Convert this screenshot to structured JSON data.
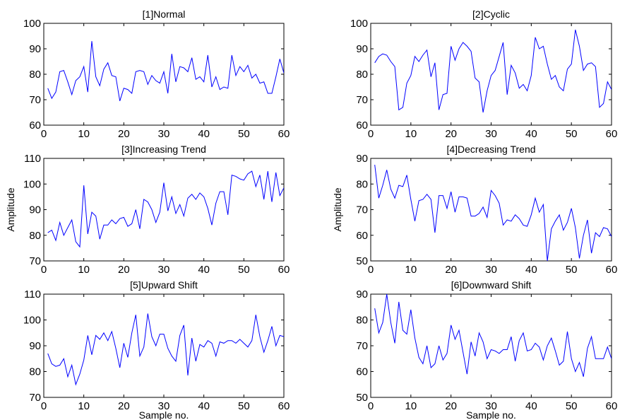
{
  "chart_data": [
    {
      "type": "line",
      "title": "[1]Normal",
      "xlabel": "",
      "ylabel": "",
      "xlim": [
        0,
        60
      ],
      "ylim": [
        60,
        100
      ],
      "xticks": [
        "0",
        "10",
        "20",
        "30",
        "40",
        "50",
        "60"
      ],
      "yticks": [
        "60",
        "70",
        "80",
        "90",
        "100"
      ],
      "color": "#0000ff",
      "x": [
        1,
        2,
        3,
        4,
        5,
        6,
        7,
        8,
        9,
        10,
        11,
        12,
        13,
        14,
        15,
        16,
        17,
        18,
        19,
        20,
        21,
        22,
        23,
        24,
        25,
        26,
        27,
        28,
        29,
        30,
        31,
        32,
        33,
        34,
        35,
        36,
        37,
        38,
        39,
        40,
        41,
        42,
        43,
        44,
        45,
        46,
        47,
        48,
        49,
        50,
        51,
        52,
        53,
        54,
        55,
        56,
        57,
        58,
        59,
        60
      ],
      "y": [
        74.5,
        70.5,
        73,
        81,
        81.5,
        77,
        72,
        77.5,
        79,
        83,
        73,
        93,
        79,
        75.5,
        82,
        84.5,
        79.5,
        79,
        69.5,
        74.5,
        74,
        72.5,
        81,
        81.5,
        81,
        76,
        79.5,
        77.5,
        76.5,
        81,
        72.5,
        88,
        77,
        83,
        82.5,
        81,
        86.5,
        78,
        79,
        77,
        87.5,
        75,
        79,
        74,
        75,
        74.5,
        87.5,
        79.5,
        83,
        81,
        83.5,
        78.5,
        80,
        76.5,
        77,
        72.5,
        72.5,
        79,
        86,
        80.5
      ]
    },
    {
      "type": "line",
      "title": "[2]Cyclic",
      "xlabel": "",
      "ylabel": "",
      "xlim": [
        0,
        60
      ],
      "ylim": [
        60,
        100
      ],
      "xticks": [
        "0",
        "10",
        "20",
        "30",
        "40",
        "50",
        "60"
      ],
      "yticks": [
        "60",
        "70",
        "80",
        "90",
        "100"
      ],
      "color": "#0000ff",
      "x": [
        1,
        2,
        3,
        4,
        5,
        6,
        7,
        8,
        9,
        10,
        11,
        12,
        13,
        14,
        15,
        16,
        17,
        18,
        19,
        20,
        21,
        22,
        23,
        24,
        25,
        26,
        27,
        28,
        29,
        30,
        31,
        32,
        33,
        34,
        35,
        36,
        37,
        38,
        39,
        40,
        41,
        42,
        43,
        44,
        45,
        46,
        47,
        48,
        49,
        50,
        51,
        52,
        53,
        54,
        55,
        56,
        57,
        58,
        59,
        60
      ],
      "y": [
        84.5,
        87,
        88,
        87.5,
        85,
        83,
        66,
        67,
        76.5,
        79.5,
        87,
        85,
        87.5,
        89.5,
        79,
        84.5,
        66,
        72,
        72.5,
        91,
        85.5,
        90,
        92.5,
        91,
        89,
        78.5,
        77,
        65,
        73.5,
        79.5,
        81.5,
        87,
        92.5,
        72,
        83.5,
        80.5,
        74.5,
        76,
        73.5,
        79.5,
        94.5,
        90,
        91,
        84,
        78,
        79.5,
        75,
        73.5,
        82,
        84,
        97.5,
        91,
        81.5,
        84,
        84.5,
        83,
        67,
        68.5,
        77,
        74
      ]
    },
    {
      "type": "line",
      "title": "[3]Increasing Trend",
      "xlabel": "",
      "ylabel": "Amplitude",
      "xlim": [
        0,
        60
      ],
      "ylim": [
        70,
        110
      ],
      "xticks": [
        "0",
        "10",
        "20",
        "30",
        "40",
        "50",
        "60"
      ],
      "yticks": [
        "70",
        "80",
        "90",
        "100",
        "110"
      ],
      "color": "#0000ff",
      "x": [
        1,
        2,
        3,
        4,
        5,
        6,
        7,
        8,
        9,
        10,
        11,
        12,
        13,
        14,
        15,
        16,
        17,
        18,
        19,
        20,
        21,
        22,
        23,
        24,
        25,
        26,
        27,
        28,
        29,
        30,
        31,
        32,
        33,
        34,
        35,
        36,
        37,
        38,
        39,
        40,
        41,
        42,
        43,
        44,
        45,
        46,
        47,
        48,
        49,
        50,
        51,
        52,
        53,
        54,
        55,
        56,
        57,
        58,
        59,
        60
      ],
      "y": [
        81,
        82,
        78,
        85,
        80,
        83,
        86,
        77.5,
        75.5,
        99.5,
        80.5,
        89,
        87.5,
        78.5,
        84,
        84,
        86,
        84.5,
        86.5,
        87,
        83.5,
        84.5,
        90,
        82.5,
        94,
        93,
        90,
        85,
        89,
        100.5,
        89.5,
        95,
        88.5,
        92,
        87.5,
        94.5,
        96,
        94,
        96.5,
        95,
        90.5,
        84,
        92.5,
        97,
        97,
        88,
        103.5,
        103,
        102,
        101.5,
        104,
        105,
        99,
        103.5,
        94,
        105,
        93,
        104.5,
        95.5,
        98.5
      ]
    },
    {
      "type": "line",
      "title": "[4]Decreasing Trend",
      "xlabel": "",
      "ylabel": "Amplitude",
      "xlim": [
        0,
        60
      ],
      "ylim": [
        50,
        90
      ],
      "xticks": [
        "0",
        "10",
        "20",
        "30",
        "40",
        "50",
        "60"
      ],
      "yticks": [
        "50",
        "60",
        "70",
        "80",
        "90"
      ],
      "color": "#0000ff",
      "x": [
        1,
        2,
        3,
        4,
        5,
        6,
        7,
        8,
        9,
        10,
        11,
        12,
        13,
        14,
        15,
        16,
        17,
        18,
        19,
        20,
        21,
        22,
        23,
        24,
        25,
        26,
        27,
        28,
        29,
        30,
        31,
        32,
        33,
        34,
        35,
        36,
        37,
        38,
        39,
        40,
        41,
        42,
        43,
        44,
        45,
        46,
        47,
        48,
        49,
        50,
        51,
        52,
        53,
        54,
        55,
        56,
        57,
        58,
        59,
        60
      ],
      "y": [
        87.5,
        74.5,
        79.5,
        85.5,
        78,
        74.5,
        79.5,
        79,
        83.5,
        74,
        65.5,
        73.5,
        74,
        76,
        74,
        61,
        75.5,
        75.5,
        70.5,
        77,
        69,
        75,
        75,
        74.5,
        67.5,
        67.5,
        68.5,
        71,
        67,
        77.5,
        75.5,
        72.5,
        64,
        66,
        65.5,
        68,
        66.5,
        64,
        63.5,
        68,
        74.5,
        69,
        72,
        50,
        62.5,
        65.5,
        68,
        62,
        65,
        70.5,
        63,
        51,
        60,
        66,
        53,
        61,
        59.5,
        63,
        62.5,
        59.5
      ]
    },
    {
      "type": "line",
      "title": "[5]Upward Shift",
      "xlabel": "Sample no.",
      "ylabel": "",
      "xlim": [
        0,
        60
      ],
      "ylim": [
        70,
        110
      ],
      "xticks": [
        "0",
        "10",
        "20",
        "30",
        "40",
        "50",
        "60"
      ],
      "yticks": [
        "70",
        "80",
        "90",
        "100",
        "110"
      ],
      "color": "#0000ff",
      "x": [
        1,
        2,
        3,
        4,
        5,
        6,
        7,
        8,
        9,
        10,
        11,
        12,
        13,
        14,
        15,
        16,
        17,
        18,
        19,
        20,
        21,
        22,
        23,
        24,
        25,
        26,
        27,
        28,
        29,
        30,
        31,
        32,
        33,
        34,
        35,
        36,
        37,
        38,
        39,
        40,
        41,
        42,
        43,
        44,
        45,
        46,
        47,
        48,
        49,
        50,
        51,
        52,
        53,
        54,
        55,
        56,
        57,
        58,
        59,
        60
      ],
      "y": [
        87,
        83,
        82,
        82.5,
        85,
        78,
        82.5,
        75,
        79,
        84.5,
        94,
        86.5,
        94,
        92.5,
        95,
        92,
        95.5,
        89,
        81.5,
        91,
        85.5,
        95,
        102,
        86,
        89.5,
        102.5,
        93.5,
        90,
        94.5,
        94.5,
        89,
        86,
        84,
        94,
        98,
        78.5,
        93,
        84,
        90.5,
        89.5,
        92,
        91,
        86,
        91.5,
        91,
        92,
        92,
        91,
        92.5,
        91,
        89.5,
        92,
        102,
        93.5,
        87.5,
        92,
        97.5,
        90,
        94,
        93.5
      ]
    },
    {
      "type": "line",
      "title": "[6]Downward Shift",
      "xlabel": "Sample no.",
      "ylabel": "",
      "xlim": [
        0,
        60
      ],
      "ylim": [
        50,
        90
      ],
      "xticks": [
        "0",
        "10",
        "20",
        "30",
        "40",
        "50",
        "60"
      ],
      "yticks": [
        "50",
        "60",
        "70",
        "80",
        "90"
      ],
      "color": "#0000ff",
      "x": [
        1,
        2,
        3,
        4,
        5,
        6,
        7,
        8,
        9,
        10,
        11,
        12,
        13,
        14,
        15,
        16,
        17,
        18,
        19,
        20,
        21,
        22,
        23,
        24,
        25,
        26,
        27,
        28,
        29,
        30,
        31,
        32,
        33,
        34,
        35,
        36,
        37,
        38,
        39,
        40,
        41,
        42,
        43,
        44,
        45,
        46,
        47,
        48,
        49,
        50,
        51,
        52,
        53,
        54,
        55,
        56,
        57,
        58,
        59,
        60
      ],
      "y": [
        84.5,
        75,
        79,
        90,
        79,
        71,
        87,
        76,
        74.5,
        84,
        73,
        65.5,
        63,
        70,
        61.5,
        63,
        70,
        64.5,
        67,
        78,
        72.5,
        76,
        67.5,
        59,
        71.5,
        66,
        75,
        71.5,
        65,
        68.5,
        68,
        67,
        68.5,
        68.5,
        73.5,
        64,
        72,
        75,
        68,
        68.5,
        71,
        69.5,
        64.5,
        70,
        73,
        68,
        62.5,
        64,
        75.5,
        65,
        60,
        63.5,
        58,
        69,
        73.5,
        65,
        65,
        65,
        69.5,
        65
      ]
    }
  ]
}
